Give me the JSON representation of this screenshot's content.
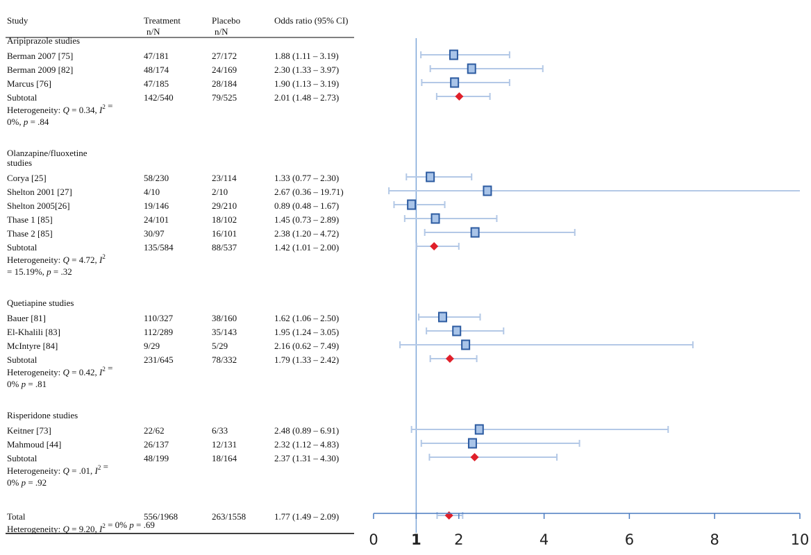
{
  "chart_data": {
    "type": "forest",
    "header": {
      "study": "Study",
      "treatment": [
        "Treatment",
        "n/N"
      ],
      "placebo": [
        "Placebo",
        "n/N"
      ],
      "or": "Odds ratio (95% CI)"
    },
    "axis": {
      "ticks": [
        "0",
        "1",
        "2",
        "4",
        "6",
        "8",
        "10"
      ],
      "tick_values": [
        0,
        1,
        2,
        4,
        6,
        8,
        10
      ],
      "xlim": [
        0,
        10
      ],
      "reference_line": 1
    },
    "rows": [
      {
        "kind": "group",
        "label": "Aripiprazole studies"
      },
      {
        "kind": "study",
        "study": "Berman 2007 [75]",
        "treatment": "47/181",
        "placebo": "27/172",
        "or_text": "1.88 (1.11 – 3.19)",
        "or": 1.88,
        "lo": 1.11,
        "hi": 3.19
      },
      {
        "kind": "study",
        "study": "Berman 2009 [82]",
        "treatment": "48/174",
        "placebo": "24/169",
        "or_text": "2.30 (1.33 – 3.97)",
        "or": 2.3,
        "lo": 1.33,
        "hi": 3.97
      },
      {
        "kind": "study",
        "study": "Marcus [76]",
        "treatment": "47/185",
        "placebo": "28/184",
        "or_text": "1.90 (1.13 – 3.19)",
        "or": 1.9,
        "lo": 1.13,
        "hi": 3.19
      },
      {
        "kind": "subtotal",
        "study": "Subtotal",
        "treatment": "142/540",
        "placebo": "79/525",
        "or_text": "2.01 (1.48 – 2.73)",
        "or": 2.01,
        "lo": 1.48,
        "hi": 2.73
      },
      {
        "kind": "het",
        "lines": [
          [
            {
              "t": "Heterogeneity: "
            },
            {
              "t": "Q",
              "i": true
            },
            {
              "t": " = 0.34, "
            },
            {
              "t": "I",
              "i": true
            },
            {
              "t": "2",
              "sup": true
            },
            {
              "t": " ="
            }
          ],
          [
            {
              "t": "0%, "
            },
            {
              "t": "p",
              "i": true
            },
            {
              "t": " = .84"
            }
          ]
        ]
      },
      {
        "kind": "group",
        "lines": [
          "Olanzapine/fluoxetine",
          "studies"
        ]
      },
      {
        "kind": "study",
        "study": "Corya [25]",
        "treatment": "58/230",
        "placebo": "23/114",
        "or_text": "1.33 (0.77 – 2.30)",
        "or": 1.33,
        "lo": 0.77,
        "hi": 2.3
      },
      {
        "kind": "study",
        "study": "Shelton 2001 [27]",
        "treatment": "4/10",
        "placebo": "2/10",
        "or_text": "2.67 (0.36 – 19.71)",
        "or": 2.67,
        "lo": 0.36,
        "hi": 19.71
      },
      {
        "kind": "study",
        "study": "Shelton 2005[26]",
        "treatment": "19/146",
        "placebo": "29/210",
        "or_text": "0.89 (0.48 – 1.67)",
        "or": 0.89,
        "lo": 0.48,
        "hi": 1.67
      },
      {
        "kind": "study",
        "study": "Thase 1 [85]",
        "treatment": "24/101",
        "placebo": "18/102",
        "or_text": "1.45 (0.73 – 2.89)",
        "or": 1.45,
        "lo": 0.73,
        "hi": 2.89
      },
      {
        "kind": "study",
        "study": "Thase 2 [85]",
        "treatment": "30/97",
        "placebo": "16/101",
        "or_text": "2.38 (1.20 – 4.72)",
        "or": 2.38,
        "lo": 1.2,
        "hi": 4.72
      },
      {
        "kind": "subtotal",
        "study": "Subtotal",
        "treatment": "135/584",
        "placebo": "88/537",
        "or_text": "1.42 (1.01 – 2.00)",
        "or": 1.42,
        "lo": 1.01,
        "hi": 2.0
      },
      {
        "kind": "het",
        "lines": [
          [
            {
              "t": "Heterogeneity: "
            },
            {
              "t": "Q",
              "i": true
            },
            {
              "t": " = 4.72,  "
            },
            {
              "t": "I",
              "i": true
            },
            {
              "t": "2",
              "sup": true
            }
          ],
          [
            {
              "t": "= 15.19%, "
            },
            {
              "t": "p",
              "i": true
            },
            {
              "t": " = .32"
            }
          ]
        ]
      },
      {
        "kind": "group",
        "label": "Quetiapine studies"
      },
      {
        "kind": "study",
        "study": "Bauer [81]",
        "treatment": "110/327",
        "placebo": "38/160",
        "or_text": "1.62 (1.06 – 2.50)",
        "or": 1.62,
        "lo": 1.06,
        "hi": 2.5
      },
      {
        "kind": "study",
        "study": "El-Khalili [83]",
        "treatment": "112/289",
        "placebo": "35/143",
        "or_text": "1.95 (1.24 – 3.05)",
        "or": 1.95,
        "lo": 1.24,
        "hi": 3.05
      },
      {
        "kind": "study",
        "study": "McIntyre [84]",
        "treatment": "9/29",
        "placebo": "5/29",
        "or_text": "2.16 (0.62 – 7.49)",
        "or": 2.16,
        "lo": 0.62,
        "hi": 7.49
      },
      {
        "kind": "subtotal",
        "study": "Subtotal",
        "treatment": "231/645",
        "placebo": "78/332",
        "or_text": "1.79 (1.33 – 2.42)",
        "or": 1.79,
        "lo": 1.33,
        "hi": 2.42
      },
      {
        "kind": "het",
        "lines": [
          [
            {
              "t": "Heterogeneity: "
            },
            {
              "t": "Q",
              "i": true
            },
            {
              "t": " = 0.42, "
            },
            {
              "t": "I",
              "i": true
            },
            {
              "t": "2",
              "sup": true
            },
            {
              "t": " ="
            }
          ],
          [
            {
              "t": "0% "
            },
            {
              "t": "p",
              "i": true
            },
            {
              "t": " = .81"
            }
          ]
        ]
      },
      {
        "kind": "group",
        "label": "Risperidone studies"
      },
      {
        "kind": "study",
        "study": "Keitner [73]",
        "treatment": "22/62",
        "placebo": "6/33",
        "or_text": "2.48 (0.89 – 6.91)",
        "or": 2.48,
        "lo": 0.89,
        "hi": 6.91
      },
      {
        "kind": "study",
        "study": "Mahmoud [44]",
        "treatment": "26/137",
        "placebo": "12/131",
        "or_text": "2.32 (1.12 – 4.83)",
        "or": 2.32,
        "lo": 1.12,
        "hi": 4.83
      },
      {
        "kind": "subtotal",
        "study": "Subtotal",
        "treatment": "48/199",
        "placebo": "18/164",
        "or_text": "2.37 (1.31 – 4.30)",
        "or": 2.37,
        "lo": 1.31,
        "hi": 4.3
      },
      {
        "kind": "het",
        "lines": [
          [
            {
              "t": "Heterogeneity: "
            },
            {
              "t": "Q",
              "i": true
            },
            {
              "t": " = .01, "
            },
            {
              "t": "I",
              "i": true
            },
            {
              "t": "2",
              "sup": true
            },
            {
              "t": " ="
            }
          ],
          [
            {
              "t": "0% "
            },
            {
              "t": "p",
              "i": true
            },
            {
              "t": " = .92"
            }
          ]
        ]
      },
      {
        "kind": "subtotal",
        "study": "Total",
        "treatment": "556/1968",
        "placebo": "263/1558",
        "or_text": "1.77 (1.49 – 2.09)",
        "or": 1.77,
        "lo": 1.49,
        "hi": 2.09
      },
      {
        "kind": "het",
        "lines": [
          [
            {
              "t": "Heterogeneity: "
            },
            {
              "t": "Q",
              "i": true
            },
            {
              "t": " = 9.20, "
            },
            {
              "t": "I",
              "i": true
            },
            {
              "t": "2",
              "sup": true
            },
            {
              "t": " = 0% "
            },
            {
              "t": "p",
              "i": true
            },
            {
              "t": " = .69"
            }
          ]
        ]
      }
    ]
  },
  "colors": {
    "study_marker_fill": "#a9c4e8",
    "study_marker_stroke": "#2b5aa0",
    "ci_line": "#b3c8e6",
    "diamond": "#e0202a",
    "reference_line": "#7ea6d8",
    "axis": "#4a7bc0",
    "rule": "#000000"
  }
}
